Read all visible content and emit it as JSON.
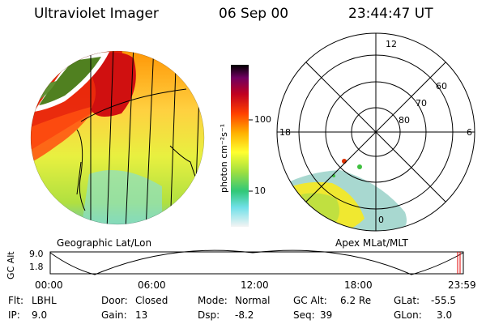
{
  "header": {
    "title": "Ultraviolet Imager",
    "date": "06 Sep 00",
    "time": "23:44:47 UT"
  },
  "geo_panel": {
    "caption": "Geographic Lat/Lon"
  },
  "apex_panel": {
    "caption": "Apex MLat/MLT",
    "mlt_labels": {
      "top": "12",
      "left": "18",
      "right": "6",
      "bottom": "0"
    },
    "lat_labels": [
      "60",
      "70",
      "80"
    ]
  },
  "colorbar": {
    "unit": "photon cm⁻²s⁻¹",
    "ticks": [
      "100",
      "10"
    ]
  },
  "orbit": {
    "axis_label": "GC Alt",
    "y_ticks": [
      "9.0",
      "1.8"
    ],
    "x_ticks": [
      "00:00",
      "06:00",
      "12:00",
      "18:00",
      "23:59"
    ],
    "current_marker_color": "#e00000"
  },
  "status": {
    "flt_label": "Flt:",
    "flt_value": "LBHL",
    "ip_label": "IP:",
    "ip_value": "9.0",
    "door_label": "Door:",
    "door_value": "Closed",
    "gain_label": "Gain:",
    "gain_value": "13",
    "mode_label": "Mode:",
    "mode_value": "Normal",
    "dsp_label": "Dsp:",
    "dsp_value": "-8.2",
    "gcalt_label": "GC Alt:",
    "gcalt_value": "6.2 Re",
    "seq_label": "Seq:",
    "seq_value": "39",
    "glat_label": "GLat:",
    "glat_value": "-55.5",
    "glon_label": "GLon:",
    "glon_value": "3.0"
  }
}
